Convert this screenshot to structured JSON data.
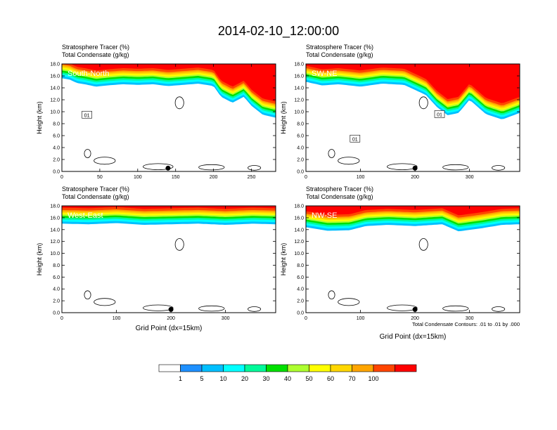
{
  "title": "2014-02-10_12:00:00",
  "colors": {
    "levels": [
      "#ffffff",
      "#1e90ff",
      "#00bfff",
      "#00ffff",
      "#00fa9a",
      "#00e000",
      "#adff2f",
      "#ffff00",
      "#ffd700",
      "#ffa500",
      "#ff4500",
      "#ff0000"
    ]
  },
  "colorbar": {
    "labels": [
      "1",
      "5",
      "10",
      "20",
      "30",
      "40",
      "50",
      "60",
      "70",
      "100"
    ]
  },
  "footnote": "Total Condensate Contours: .01 to .01 by .000",
  "chart_data": [
    {
      "type": "heatmap",
      "label_line1": "Stratosphere Tracer   (%)",
      "label_line2": "Total Condensate   (g/kg)",
      "inset_label": "South-North",
      "ylabel": "Height (km)",
      "xlabel": "",
      "xlim": [
        0,
        282
      ],
      "ylim": [
        0,
        18
      ],
      "xticks": [
        0,
        50,
        100,
        150,
        200,
        250
      ],
      "yticks": [
        "0.0",
        "2.0",
        "4.0",
        "6.0",
        "8.0",
        "10.0",
        "12.0",
        "14.0",
        "16.0",
        "18.0"
      ],
      "marker_x": 140,
      "contour_labels": [
        {
          "text": "01",
          "x": 33,
          "y": 9.5
        }
      ],
      "tropopause": [
        [
          0,
          15.6
        ],
        [
          10,
          15.4
        ],
        [
          20,
          14.8
        ],
        [
          30,
          14.6
        ],
        [
          45,
          14.2
        ],
        [
          60,
          14.4
        ],
        [
          80,
          14.6
        ],
        [
          100,
          14.5
        ],
        [
          120,
          14.6
        ],
        [
          140,
          14.3
        ],
        [
          160,
          14.5
        ],
        [
          180,
          14.7
        ],
        [
          200,
          14.3
        ],
        [
          210,
          12.5
        ],
        [
          225,
          11.5
        ],
        [
          240,
          12.5
        ],
        [
          250,
          11.0
        ],
        [
          265,
          9.5
        ],
        [
          282,
          9.0
        ]
      ]
    },
    {
      "type": "heatmap",
      "label_line1": "Stratosphere Tracer   (%)",
      "label_line2": "Total Condensate   (g/kg)",
      "inset_label": "SW-NE",
      "ylabel": "Height (km)",
      "xlabel": "",
      "xlim": [
        0,
        392
      ],
      "ylim": [
        0,
        18
      ],
      "xticks": [
        0,
        100,
        200,
        300
      ],
      "yticks": [
        "0.0",
        "2.0",
        "4.0",
        "6.0",
        "8.0",
        "10.0",
        "12.0",
        "14.0",
        "16.0",
        "18.0"
      ],
      "marker_x": 200,
      "contour_labels": [
        {
          "text": "01",
          "x": 90,
          "y": 5.5
        },
        {
          "text": "01",
          "x": 245,
          "y": 9.6
        }
      ],
      "tropopause": [
        [
          0,
          15.0
        ],
        [
          30,
          14.4
        ],
        [
          60,
          14.6
        ],
        [
          100,
          14.2
        ],
        [
          140,
          14.7
        ],
        [
          180,
          14.5
        ],
        [
          220,
          12.8
        ],
        [
          240,
          10.8
        ],
        [
          260,
          9.4
        ],
        [
          280,
          9.8
        ],
        [
          300,
          12.0
        ],
        [
          315,
          10.8
        ],
        [
          330,
          9.6
        ],
        [
          360,
          8.7
        ],
        [
          392,
          9.8
        ]
      ]
    },
    {
      "type": "heatmap",
      "label_line1": "Stratosphere Tracer   (%)",
      "label_line2": "Total Condensate   (g/kg)",
      "inset_label": "West-East",
      "ylabel": "Height (km)",
      "xlabel": "Grid Point (dx=15km)",
      "xlim": [
        0,
        392
      ],
      "ylim": [
        0,
        18
      ],
      "xticks": [
        0,
        100,
        200,
        300
      ],
      "yticks": [
        "0.0",
        "2.0",
        "4.0",
        "6.0",
        "8.0",
        "10.0",
        "12.0",
        "14.0",
        "16.0",
        "18.0"
      ],
      "marker_x": 200,
      "contour_labels": [],
      "tropopause": [
        [
          0,
          15.0
        ],
        [
          50,
          14.9
        ],
        [
          100,
          15.1
        ],
        [
          150,
          14.8
        ],
        [
          200,
          14.9
        ],
        [
          250,
          15.0
        ],
        [
          300,
          14.8
        ],
        [
          350,
          15.0
        ],
        [
          392,
          14.9
        ]
      ]
    },
    {
      "type": "heatmap",
      "label_line1": "Stratosphere Tracer   (%)",
      "label_line2": "Total Condensate   (g/kg)",
      "inset_label": "NW-SE",
      "ylabel": "Height (km)",
      "xlabel": "Grid Point (dx=15km)",
      "xlim": [
        0,
        392
      ],
      "ylim": [
        0,
        18
      ],
      "xticks": [
        0,
        100,
        200,
        300
      ],
      "yticks": [
        "0.0",
        "2.0",
        "4.0",
        "6.0",
        "8.0",
        "10.0",
        "12.0",
        "14.0",
        "16.0",
        "18.0"
      ],
      "marker_x": 200,
      "contour_labels": [],
      "tropopause": [
        [
          0,
          14.4
        ],
        [
          40,
          13.8
        ],
        [
          80,
          13.9
        ],
        [
          110,
          14.6
        ],
        [
          150,
          14.8
        ],
        [
          200,
          14.6
        ],
        [
          250,
          14.9
        ],
        [
          280,
          13.7
        ],
        [
          320,
          14.2
        ],
        [
          360,
          14.8
        ],
        [
          392,
          14.9
        ]
      ]
    }
  ]
}
